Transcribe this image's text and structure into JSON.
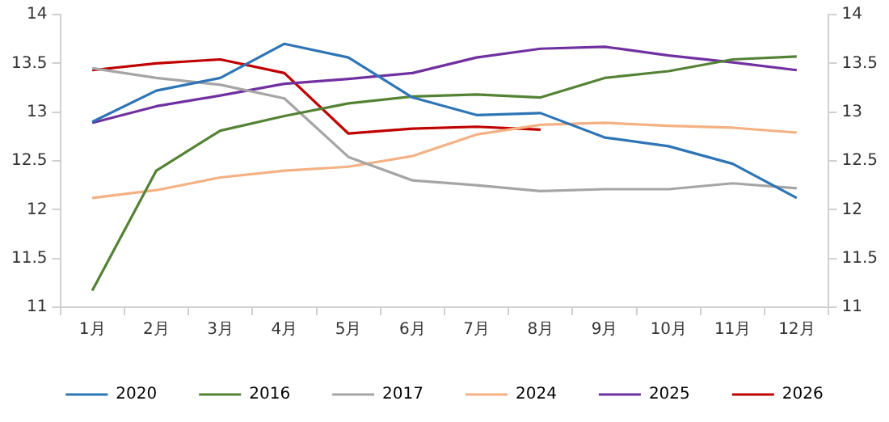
{
  "chart_data": {
    "type": "line",
    "categories": [
      "1月",
      "2月",
      "3月",
      "4月",
      "5月",
      "6月",
      "7月",
      "8月",
      "9月",
      "10月",
      "11月",
      "12月"
    ],
    "series": [
      {
        "name": "2020",
        "color": "#2e75b6",
        "values": [
          12.9,
          13.22,
          13.35,
          13.7,
          13.56,
          13.15,
          12.97,
          12.99,
          12.74,
          12.65,
          12.47,
          12.12
        ]
      },
      {
        "name": "2016",
        "color": "#548235",
        "values": [
          11.17,
          12.4,
          12.81,
          12.96,
          13.09,
          13.16,
          13.18,
          13.15,
          13.35,
          13.42,
          13.54,
          13.57
        ]
      },
      {
        "name": "2017",
        "color": "#a5a5a5",
        "values": [
          13.45,
          13.35,
          13.28,
          13.14,
          12.54,
          12.3,
          12.25,
          12.19,
          12.21,
          12.21,
          12.27,
          12.22
        ]
      },
      {
        "name": "2024",
        "color": "#f4b183",
        "values": [
          12.12,
          12.2,
          12.33,
          12.4,
          12.44,
          12.55,
          12.77,
          12.87,
          12.89,
          12.86,
          12.84,
          12.79
        ]
      },
      {
        "name": "2025",
        "color": "#7030a0",
        "values": [
          12.89,
          13.06,
          13.17,
          13.29,
          13.34,
          13.4,
          13.56,
          13.65,
          13.67,
          13.58,
          13.51,
          13.43
        ]
      },
      {
        "name": "2026",
        "color": "#c00000",
        "values": [
          13.43,
          13.5,
          13.54,
          13.4,
          12.78,
          12.83,
          12.85,
          12.82,
          null,
          null,
          null,
          null
        ]
      }
    ],
    "ylim": [
      11,
      14
    ],
    "yticks": [
      11,
      11.5,
      12,
      12.5,
      13,
      13.5,
      14
    ],
    "y2lim": [
      11,
      14
    ],
    "y2ticks": [
      11,
      11.5,
      12,
      12.5,
      13,
      13.5,
      14
    ],
    "grid": false,
    "legend": "bottom",
    "marker": "none",
    "line_style": "solid"
  }
}
